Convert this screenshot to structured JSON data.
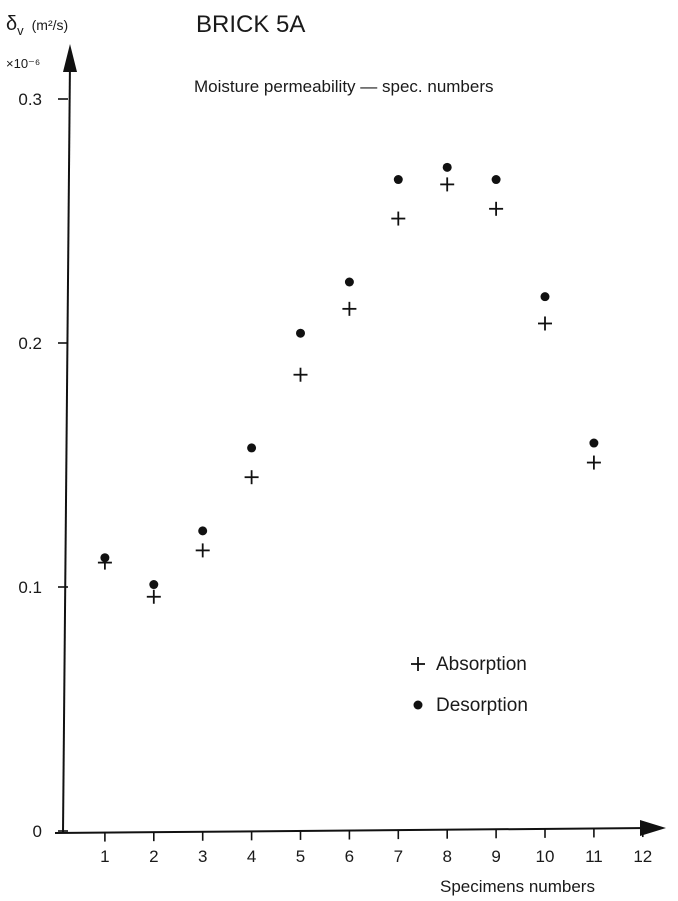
{
  "chart_data": {
    "type": "scatter",
    "title": "BRICK 5A",
    "subtitle": "Moisture permeability — spec. numbers",
    "ylabel_symbol": "δ",
    "ylabel_subscript": "v",
    "ylabel_unit": "(m²/s)",
    "y_multiplier": "×10⁻⁶",
    "xlabel": "Specimens numbers",
    "xlim": [
      0,
      12
    ],
    "ylim": [
      0,
      0.3
    ],
    "x_ticks": [
      1,
      2,
      3,
      4,
      5,
      6,
      7,
      8,
      9,
      10,
      11,
      12
    ],
    "y_ticks": [
      {
        "value": 0,
        "label": "0"
      },
      {
        "value": 0.1,
        "label": "0.1"
      },
      {
        "value": 0.2,
        "label": "0.2"
      },
      {
        "value": 0.3,
        "label": "0.3"
      }
    ],
    "grid": false,
    "legend_position": "lower-right",
    "series": [
      {
        "name": "Absorption",
        "marker": "plus",
        "points": [
          {
            "x": 1,
            "y": 0.11
          },
          {
            "x": 2,
            "y": 0.096
          },
          {
            "x": 3,
            "y": 0.115
          },
          {
            "x": 4,
            "y": 0.145
          },
          {
            "x": 5,
            "y": 0.187
          },
          {
            "x": 6,
            "y": 0.214
          },
          {
            "x": 7,
            "y": 0.251
          },
          {
            "x": 8,
            "y": 0.265
          },
          {
            "x": 9,
            "y": 0.255
          },
          {
            "x": 10,
            "y": 0.208
          },
          {
            "x": 11,
            "y": 0.151
          }
        ]
      },
      {
        "name": "Desorption",
        "marker": "dot",
        "points": [
          {
            "x": 1,
            "y": 0.112
          },
          {
            "x": 2,
            "y": 0.101
          },
          {
            "x": 3,
            "y": 0.123
          },
          {
            "x": 4,
            "y": 0.157
          },
          {
            "x": 5,
            "y": 0.204
          },
          {
            "x": 6,
            "y": 0.225
          },
          {
            "x": 7,
            "y": 0.267
          },
          {
            "x": 8,
            "y": 0.272
          },
          {
            "x": 9,
            "y": 0.267
          },
          {
            "x": 10,
            "y": 0.219
          },
          {
            "x": 11,
            "y": 0.159
          }
        ]
      }
    ]
  }
}
